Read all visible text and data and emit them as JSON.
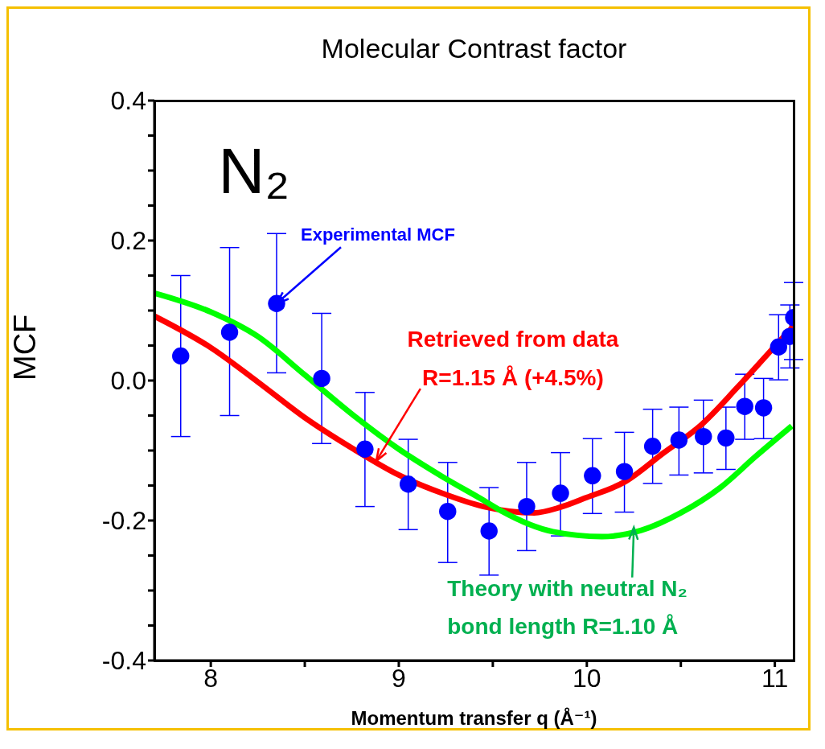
{
  "chart_data": {
    "type": "scatter",
    "title": "Molecular Contrast factor",
    "xlabel": "Momentum transfer q (Å⁻¹)",
    "ylabel": "MCF",
    "xlim": [
      7.7,
      11.1
    ],
    "ylim": [
      -0.4,
      0.4
    ],
    "xticks": [
      8,
      {
        "value": 8.5,
        "label": null
      },
      9,
      {
        "value": 9.5,
        "label": null
      },
      10,
      {
        "value": 10.5,
        "label": null
      },
      11
    ],
    "yticks": [
      -0.4,
      {
        "value": -0.35,
        "label": null
      },
      {
        "value": -0.3,
        "label": null
      },
      {
        "value": -0.25,
        "label": null
      },
      -0.2,
      {
        "value": -0.15,
        "label": null
      },
      {
        "value": -0.1,
        "label": null
      },
      {
        "value": -0.05,
        "label": null
      },
      {
        "value": 0,
        "label": "0.0"
      },
      {
        "value": 0.05,
        "label": null
      },
      {
        "value": 0.1,
        "label": null
      },
      {
        "value": 0.15,
        "label": null
      },
      0.2,
      {
        "value": 0.25,
        "label": null
      },
      {
        "value": 0.3,
        "label": null
      },
      {
        "value": 0.35,
        "label": null
      },
      0.4
    ],
    "series": [
      {
        "marker": "circle",
        "color": "#0000ff",
        "x": [
          7.84,
          8.1,
          8.35,
          8.59,
          8.82,
          9.05,
          9.26,
          9.48,
          9.68,
          9.86,
          10.03,
          10.2,
          10.35,
          10.49,
          10.62,
          10.74,
          10.84,
          10.94,
          11.02,
          11.08,
          11.1
        ],
        "values": [
          0.035,
          0.069,
          0.11,
          0.003,
          -0.098,
          -0.148,
          -0.187,
          -0.215,
          -0.18,
          -0.161,
          -0.136,
          -0.13,
          -0.094,
          -0.085,
          -0.08,
          -0.082,
          -0.037,
          -0.039,
          0.048,
          0.063,
          0.09
        ],
        "errors": [
          [
            -0.08,
            0.15
          ],
          [
            -0.05,
            0.19
          ],
          [
            0.011,
            0.21
          ],
          [
            -0.09,
            0.096
          ],
          [
            -0.18,
            -0.017
          ],
          [
            -0.213,
            -0.084
          ],
          [
            -0.26,
            -0.117
          ],
          [
            -0.278,
            -0.153
          ],
          [
            -0.243,
            -0.117
          ],
          [
            -0.222,
            -0.103
          ],
          [
            -0.19,
            -0.083
          ],
          [
            -0.188,
            -0.074
          ],
          [
            -0.147,
            -0.041
          ],
          [
            -0.135,
            -0.038
          ],
          [
            -0.132,
            -0.028
          ],
          [
            -0.127,
            -0.038
          ],
          [
            -0.084,
            0.009
          ],
          [
            -0.083,
            0.003
          ],
          [
            0.001,
            0.094
          ],
          [
            0.018,
            0.108
          ],
          [
            0.03,
            0.14
          ]
        ]
      },
      {
        "type": "line",
        "color": "#ff0000",
        "x": [
          7.7,
          8.0,
          8.25,
          8.5,
          8.76,
          9.0,
          9.23,
          9.45,
          9.72,
          9.86,
          10.0,
          10.2,
          10.41,
          10.61,
          10.8,
          10.98,
          11.1
        ],
        "values": [
          0.092,
          0.047,
          -0.002,
          -0.053,
          -0.098,
          -0.135,
          -0.161,
          -0.18,
          -0.189,
          -0.181,
          -0.167,
          -0.145,
          -0.103,
          -0.063,
          -0.01,
          0.043,
          0.078
        ]
      },
      {
        "type": "line",
        "color": "#00ff00",
        "x": [
          7.7,
          8.0,
          8.25,
          8.5,
          8.76,
          9.0,
          9.23,
          9.45,
          9.55,
          9.82,
          10.08,
          10.29,
          10.5,
          10.71,
          10.9,
          11.09
        ],
        "values": [
          0.125,
          0.098,
          0.063,
          0.008,
          -0.05,
          -0.098,
          -0.137,
          -0.171,
          -0.187,
          -0.216,
          -0.223,
          -0.214,
          -0.189,
          -0.153,
          -0.108,
          -0.065
        ]
      }
    ],
    "annotations": [
      "N₂",
      {
        "text": "Experimental MCF",
        "x": 8.35,
        "y": 0.11
      },
      {
        "text": "Retrieved from data\nR=1.15 Å (+4.5%)",
        "x": 8.88,
        "y": -0.115
      },
      {
        "text": "Theory with neutral N₂\nbond length R=1.10 Å",
        "x": 10.25,
        "y": -0.21
      }
    ]
  }
}
